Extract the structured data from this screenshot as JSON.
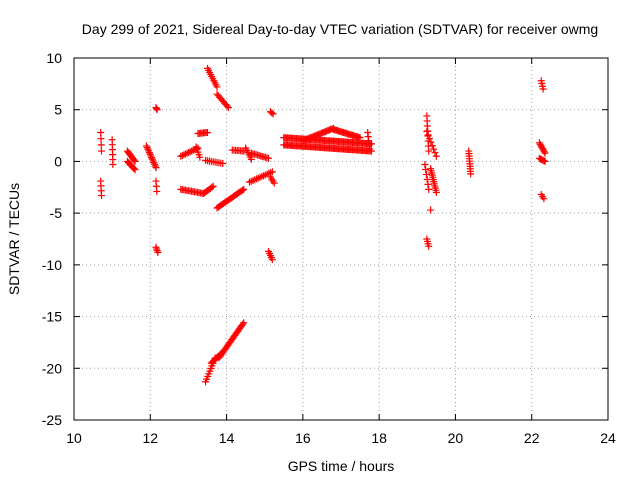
{
  "chart_data": {
    "type": "scatter",
    "title": "Day 299 of 2021, Sidereal Day-to-day VTEC variation (SDTVAR) for receiver owmg",
    "xlabel": "GPS time / hours",
    "ylabel": "SDTVAR / TECUs",
    "xlim": [
      10,
      24
    ],
    "ylim": [
      -25,
      10
    ],
    "xticks": [
      10,
      12,
      14,
      16,
      18,
      20,
      22,
      24
    ],
    "yticks": [
      -25,
      -20,
      -15,
      -10,
      -5,
      0,
      5,
      10
    ],
    "xtick_labels": [
      "10",
      "12",
      "14",
      "16",
      "18",
      "20",
      "22",
      "24"
    ],
    "ytick_labels": [
      "-25",
      "-20",
      "-15",
      "-10",
      "-5",
      "0",
      "5",
      "10"
    ],
    "grid": true,
    "marker": "+",
    "color": "#ff0000",
    "series": [
      {
        "name": "SDTVAR",
        "segments": [
          {
            "x0": 10.7,
            "x1": 10.72,
            "y0": 2.8,
            "y1": 1.0,
            "n": 4
          },
          {
            "x0": 10.7,
            "x1": 10.72,
            "y0": -1.9,
            "y1": -3.3,
            "n": 4
          },
          {
            "x0": 11.0,
            "x1": 11.02,
            "y0": 2.1,
            "y1": -0.3,
            "n": 6
          },
          {
            "x0": 11.4,
            "x1": 11.6,
            "y0": 1.0,
            "y1": 0.0,
            "n": 10
          },
          {
            "x0": 11.4,
            "x1": 11.6,
            "y0": 0.0,
            "y1": -0.8,
            "n": 8
          },
          {
            "x0": 11.9,
            "x1": 12.15,
            "y0": 1.5,
            "y1": -0.6,
            "n": 14
          },
          {
            "x0": 12.15,
            "x1": 12.17,
            "y0": -1.9,
            "y1": -2.9,
            "n": 3
          },
          {
            "x0": 12.15,
            "x1": 12.18,
            "y0": 5.2,
            "y1": 5.0,
            "n": 3
          },
          {
            "x0": 12.15,
            "x1": 12.2,
            "y0": -8.3,
            "y1": -8.8,
            "n": 4
          },
          {
            "x0": 12.8,
            "x1": 13.25,
            "y0": 0.5,
            "y1": 1.3,
            "n": 12
          },
          {
            "x0": 12.8,
            "x1": 13.4,
            "y0": -2.7,
            "y1": -3.1,
            "n": 16
          },
          {
            "x0": 13.4,
            "x1": 13.65,
            "y0": -3.1,
            "y1": -2.4,
            "n": 8
          },
          {
            "x0": 13.25,
            "x1": 13.5,
            "y0": 2.7,
            "y1": 2.8,
            "n": 8
          },
          {
            "x0": 13.2,
            "x1": 13.3,
            "y0": 1.4,
            "y1": 0.4,
            "n": 5
          },
          {
            "x0": 13.45,
            "x1": 13.9,
            "y0": 0.1,
            "y1": -0.2,
            "n": 10
          },
          {
            "x0": 13.5,
            "x1": 13.75,
            "y0": 9.0,
            "y1": 7.2,
            "n": 10
          },
          {
            "x0": 13.75,
            "x1": 14.05,
            "y0": 6.5,
            "y1": 5.2,
            "n": 10
          },
          {
            "x0": 13.75,
            "x1": 14.45,
            "y0": -4.5,
            "y1": -2.7,
            "n": 22
          },
          {
            "x0": 14.15,
            "x1": 14.45,
            "y0": 1.1,
            "y1": 1.0,
            "n": 8
          },
          {
            "x0": 14.5,
            "x1": 14.65,
            "y0": 1.3,
            "y1": 0.2,
            "n": 6
          },
          {
            "x0": 14.65,
            "x1": 15.1,
            "y0": 0.8,
            "y1": 0.3,
            "n": 12
          },
          {
            "x0": 14.6,
            "x1": 15.2,
            "y0": -2.0,
            "y1": -1.0,
            "n": 14
          },
          {
            "x0": 15.15,
            "x1": 15.25,
            "y0": -1.5,
            "y1": -2.1,
            "n": 4
          },
          {
            "x0": 15.15,
            "x1": 15.22,
            "y0": 4.8,
            "y1": 4.6,
            "n": 3
          },
          {
            "x0": 15.1,
            "x1": 15.2,
            "y0": -8.7,
            "y1": -9.5,
            "n": 5
          },
          {
            "x0": 13.45,
            "x1": 13.7,
            "y0": -21.3,
            "y1": -19.0,
            "n": 10
          },
          {
            "x0": 13.6,
            "x1": 13.85,
            "y0": -19.5,
            "y1": -18.6,
            "n": 10
          },
          {
            "x0": 13.8,
            "x1": 14.45,
            "y0": -19.0,
            "y1": -15.6,
            "n": 26
          },
          {
            "x0": 15.5,
            "x1": 17.8,
            "y0": 1.6,
            "y1": 1.0,
            "n": 70
          },
          {
            "x0": 15.5,
            "x1": 17.8,
            "y0": 2.3,
            "y1": 1.7,
            "n": 70
          },
          {
            "x0": 16.0,
            "x1": 16.8,
            "y0": 2.0,
            "y1": 3.2,
            "n": 24
          },
          {
            "x0": 16.8,
            "x1": 17.5,
            "y0": 3.1,
            "y1": 2.3,
            "n": 22
          },
          {
            "x0": 17.7,
            "x1": 17.75,
            "y0": 2.8,
            "y1": 1.2,
            "n": 5
          },
          {
            "x0": 19.25,
            "x1": 19.3,
            "y0": 4.4,
            "y1": 1.0,
            "n": 8
          },
          {
            "x0": 19.25,
            "x1": 19.5,
            "y0": 2.9,
            "y1": 0.5,
            "n": 8
          },
          {
            "x0": 19.2,
            "x1": 19.3,
            "y0": -0.3,
            "y1": -2.7,
            "n": 6
          },
          {
            "x0": 19.35,
            "x1": 19.5,
            "y0": -0.7,
            "y1": -3.0,
            "n": 12
          },
          {
            "x0": 19.35,
            "x1": 19.38,
            "y0": -4.7,
            "y1": -4.7,
            "n": 1
          },
          {
            "x0": 19.25,
            "x1": 19.3,
            "y0": -7.5,
            "y1": -8.2,
            "n": 4
          },
          {
            "x0": 20.35,
            "x1": 20.4,
            "y0": 1.0,
            "y1": -1.2,
            "n": 10
          },
          {
            "x0": 22.2,
            "x1": 22.35,
            "y0": 1.8,
            "y1": 0.8,
            "n": 8
          },
          {
            "x0": 22.2,
            "x1": 22.35,
            "y0": 0.3,
            "y1": 0.0,
            "n": 6
          },
          {
            "x0": 22.25,
            "x1": 22.3,
            "y0": 7.8,
            "y1": 7.0,
            "n": 4
          },
          {
            "x0": 22.25,
            "x1": 22.32,
            "y0": -3.2,
            "y1": -3.6,
            "n": 3
          }
        ]
      }
    ]
  }
}
